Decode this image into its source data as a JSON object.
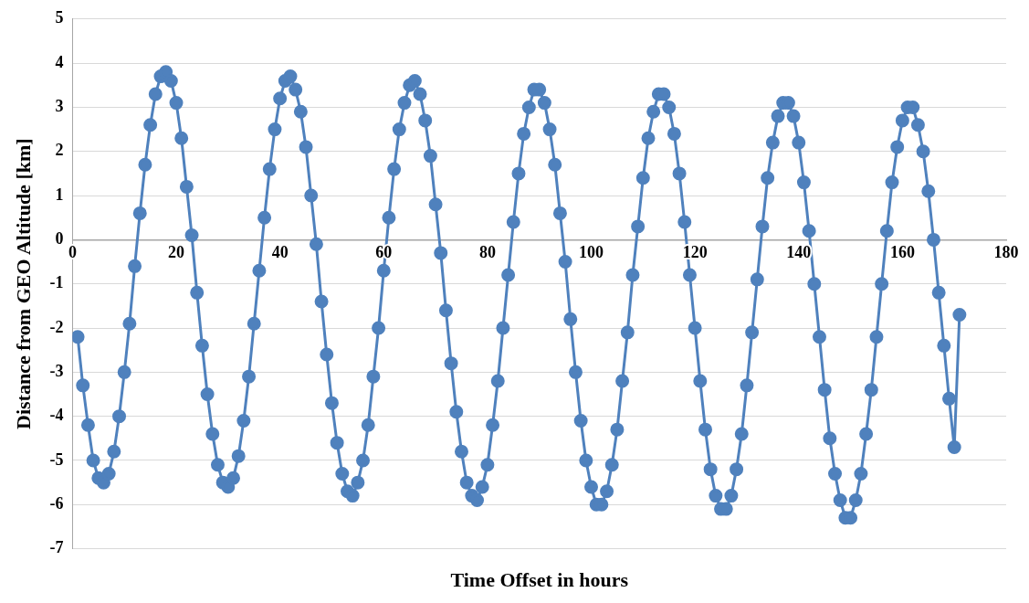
{
  "chart_data": {
    "type": "line",
    "xlabel": "Time Offset in hours",
    "ylabel": "Distance from GEO Altitude [km]",
    "xlim": [
      0,
      180
    ],
    "xticks": [
      0,
      20,
      40,
      60,
      80,
      100,
      120,
      140,
      160,
      180
    ],
    "ylim": [
      -7,
      5
    ],
    "yticks": [
      -7,
      -6,
      -5,
      -4,
      -3,
      -2,
      -1,
      0,
      1,
      2,
      3,
      4,
      5
    ],
    "grid": "y",
    "marker": "circle",
    "line_style": "solid",
    "legend": false,
    "series": [
      {
        "color": "#4f81bd",
        "x": [
          1,
          2,
          3,
          4,
          5,
          6,
          7,
          8,
          9,
          10,
          11,
          12,
          13,
          14,
          15,
          16,
          17,
          18,
          19,
          20,
          21,
          22,
          23,
          24,
          25,
          26,
          27,
          28,
          29,
          30,
          31,
          32,
          33,
          34,
          35,
          36,
          37,
          38,
          39,
          40,
          41,
          42,
          43,
          44,
          45,
          46,
          47,
          48,
          49,
          50,
          51,
          52,
          53,
          54,
          55,
          56,
          57,
          58,
          59,
          60,
          61,
          62,
          63,
          64,
          65,
          66,
          67,
          68,
          69,
          70,
          71,
          72,
          73,
          74,
          75,
          76,
          77,
          78,
          79,
          80,
          81,
          82,
          83,
          84,
          85,
          86,
          87,
          88,
          89,
          90,
          91,
          92,
          93,
          94,
          95,
          96,
          97,
          98,
          99,
          100,
          101,
          102,
          103,
          104,
          105,
          106,
          107,
          108,
          109,
          110,
          111,
          112,
          113,
          114,
          115,
          116,
          117,
          118,
          119,
          120,
          121,
          122,
          123,
          124,
          125,
          126,
          127,
          128,
          129,
          130,
          131,
          132,
          133,
          134,
          135,
          136,
          137,
          138,
          139,
          140,
          141,
          142,
          143,
          144,
          145,
          146,
          147,
          148,
          149,
          150,
          151,
          152,
          153,
          154,
          155,
          156,
          157,
          158,
          159,
          160,
          161,
          162,
          163,
          164,
          165,
          166,
          167,
          168,
          169,
          170,
          171
        ],
        "values": [
          -2.2,
          -3.3,
          -4.2,
          -5.0,
          -5.4,
          -5.5,
          -5.3,
          -4.8,
          -4.0,
          -3.0,
          -1.9,
          -0.6,
          0.6,
          1.7,
          2.6,
          3.3,
          3.7,
          3.8,
          3.6,
          3.1,
          2.3,
          1.2,
          0.1,
          -1.2,
          -2.4,
          -3.5,
          -4.4,
          -5.1,
          -5.5,
          -5.6,
          -5.4,
          -4.9,
          -4.1,
          -3.1,
          -1.9,
          -0.7,
          0.5,
          1.6,
          2.5,
          3.2,
          3.6,
          3.7,
          3.4,
          2.9,
          2.1,
          1.0,
          -0.1,
          -1.4,
          -2.6,
          -3.7,
          -4.6,
          -5.3,
          -5.7,
          -5.8,
          -5.5,
          -5.0,
          -4.2,
          -3.1,
          -2.0,
          -0.7,
          0.5,
          1.6,
          2.5,
          3.1,
          3.5,
          3.6,
          3.3,
          2.7,
          1.9,
          0.8,
          -0.3,
          -1.6,
          -2.8,
          -3.9,
          -4.8,
          -5.5,
          -5.8,
          -5.9,
          -5.6,
          -5.1,
          -4.2,
          -3.2,
          -2.0,
          -0.8,
          0.4,
          1.5,
          2.4,
          3.0,
          3.4,
          3.4,
          3.1,
          2.5,
          1.7,
          0.6,
          -0.5,
          -1.8,
          -3.0,
          -4.1,
          -5.0,
          -5.6,
          -6.0,
          -6.0,
          -5.7,
          -5.1,
          -4.3,
          -3.2,
          -2.1,
          -0.8,
          0.3,
          1.4,
          2.3,
          2.9,
          3.3,
          3.3,
          3.0,
          2.4,
          1.5,
          0.4,
          -0.8,
          -2.0,
          -3.2,
          -4.3,
          -5.2,
          -5.8,
          -6.1,
          -6.1,
          -5.8,
          -5.2,
          -4.4,
          -3.3,
          -2.1,
          -0.9,
          0.3,
          1.4,
          2.2,
          2.8,
          3.1,
          3.1,
          2.8,
          2.2,
          1.3,
          0.2,
          -1.0,
          -2.2,
          -3.4,
          -4.5,
          -5.3,
          -5.9,
          -6.3,
          -6.3,
          -5.9,
          -5.3,
          -4.4,
          -3.4,
          -2.2,
          -1.0,
          0.2,
          1.3,
          2.1,
          2.7,
          3.0,
          3.0,
          2.6,
          2.0,
          1.1,
          0.0,
          -1.2,
          -2.4,
          -3.6,
          -4.7,
          -1.7
        ]
      }
    ]
  }
}
